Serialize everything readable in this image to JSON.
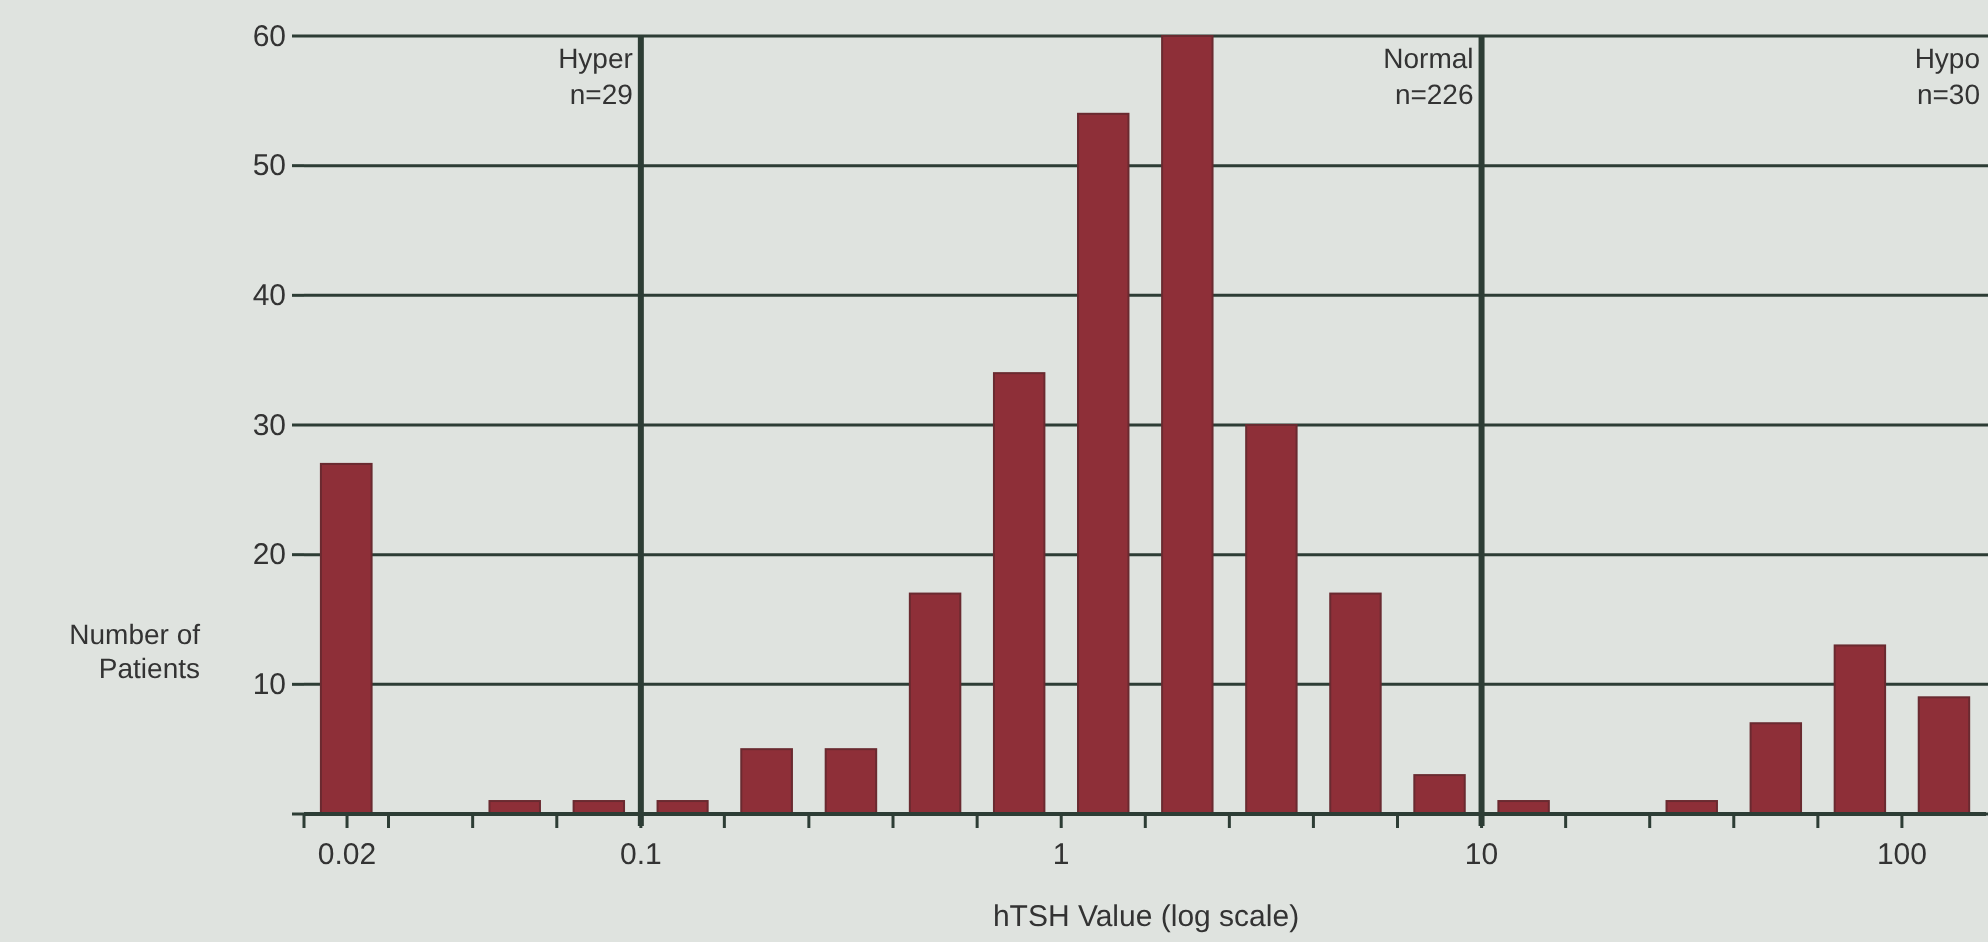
{
  "chart_data": {
    "type": "histogram",
    "xlabel": "hTSH Value (log scale)",
    "ylabel": "Number of\nPatients",
    "log": "x",
    "grid": "y",
    "color": "#8e2f38",
    "bins": [
      0.0158,
      0.0251,
      0.0398,
      0.0631,
      0.1,
      0.158,
      0.251,
      0.398,
      0.631,
      1,
      1.585,
      2.512,
      3.981,
      6.31,
      10,
      15.85,
      25.12,
      39.81,
      63.1,
      100,
      158.5
    ],
    "values": [
      27,
      0,
      1,
      1,
      1,
      5,
      5,
      17,
      34,
      54,
      60,
      30,
      17,
      3,
      1,
      0,
      1,
      7,
      13,
      9
    ],
    "xlim": [
      0.0158,
      158.5
    ],
    "xticks": [
      {
        "value": 0.0158,
        "label": null
      },
      {
        "value": 0.02,
        "label": "0.02"
      },
      {
        "value": 0.0251,
        "label": null
      },
      {
        "value": 0.0398,
        "label": null
      },
      {
        "value": 0.0631,
        "label": null
      },
      {
        "value": 0.1,
        "label": "0.1"
      },
      {
        "value": 0.158,
        "label": null
      },
      {
        "value": 0.251,
        "label": null
      },
      {
        "value": 0.398,
        "label": null
      },
      {
        "value": 0.631,
        "label": null
      },
      {
        "value": 1,
        "label": "1"
      },
      {
        "value": 1.585,
        "label": null
      },
      {
        "value": 2.512,
        "label": null
      },
      {
        "value": 3.981,
        "label": null
      },
      {
        "value": 6.31,
        "label": null
      },
      {
        "value": 10,
        "label": "10"
      },
      {
        "value": 15.85,
        "label": null
      },
      {
        "value": 25.12,
        "label": null
      },
      {
        "value": 39.81,
        "label": null
      },
      {
        "value": 63.1,
        "label": null
      },
      {
        "value": 100,
        "label": "100"
      }
    ],
    "ylim": [
      0,
      60
    ],
    "yticks": [
      {
        "value": 0,
        "label": null
      },
      10,
      20,
      30,
      40,
      50,
      60
    ],
    "ref_lines": [
      {
        "axis": "x",
        "value": 0.1,
        "color": "#2d3d35"
      },
      {
        "axis": "x",
        "value": 10,
        "color": "#2d3d35"
      }
    ],
    "annotations": [
      {
        "text": "Hyper\nn=29",
        "x": 0.1,
        "y": 60
      },
      {
        "text": "Normal\nn=226",
        "x": 10,
        "y": 60
      },
      "Hypo\nn=30"
    ]
  }
}
